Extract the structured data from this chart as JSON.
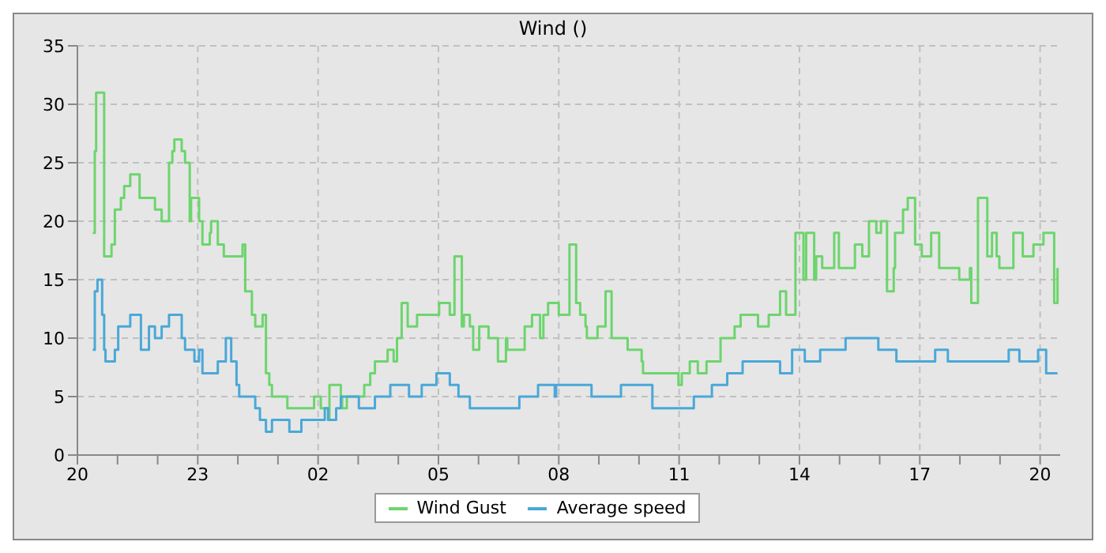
{
  "chart_data": {
    "type": "step",
    "title": "Wind ()",
    "xlim": [
      "--01-01T20:00",
      "--01-02T20:30"
    ],
    "ylim": [
      0,
      35
    ],
    "xticks": [
      {
        "value": "--01-01T20:00",
        "label": "20"
      },
      {
        "value": "--01-01T21:00",
        "label": null
      },
      {
        "value": "--01-01T22:00",
        "label": null
      },
      {
        "value": "--01-01T23:00",
        "label": "23"
      },
      {
        "value": "--01-02T00:00",
        "label": null
      },
      {
        "value": "--01-02T01:00",
        "label": null
      },
      {
        "value": "--01-02T02:00",
        "label": "02"
      },
      {
        "value": "--01-02T03:00",
        "label": null
      },
      {
        "value": "--01-02T04:00",
        "label": null
      },
      {
        "value": "--01-02T05:00",
        "label": "05"
      },
      {
        "value": "--01-02T06:00",
        "label": null
      },
      {
        "value": "--01-02T07:00",
        "label": null
      },
      {
        "value": "--01-02T08:00",
        "label": "08"
      },
      {
        "value": "--01-02T09:00",
        "label": null
      },
      {
        "value": "--01-02T10:00",
        "label": null
      },
      {
        "value": "--01-02T11:00",
        "label": "11"
      },
      {
        "value": "--01-02T12:00",
        "label": null
      },
      {
        "value": "--01-02T13:00",
        "label": null
      },
      {
        "value": "--01-02T14:00",
        "label": "14"
      },
      {
        "value": "--01-02T15:00",
        "label": null
      },
      {
        "value": "--01-02T16:00",
        "label": null
      },
      {
        "value": "--01-02T17:00",
        "label": "17"
      },
      {
        "value": "--01-02T18:00",
        "label": null
      },
      {
        "value": "--01-02T19:00",
        "label": null
      },
      {
        "value": "--01-02T20:00",
        "label": "20"
      }
    ],
    "yticks": [
      0,
      5,
      10,
      15,
      20,
      25,
      30,
      35
    ],
    "grid": true,
    "legend": "bottom",
    "series": [
      {
        "name": "Wind Gust",
        "color": "#6dd56d",
        "x": [
          "--01-01T20:23",
          "--01-01T20:26",
          "--01-01T20:28",
          "--01-01T20:40",
          "--01-01T20:51",
          "--01-01T20:56",
          "--01-01T21:05",
          "--01-01T21:10",
          "--01-01T21:19",
          "--01-01T21:33",
          "--01-01T21:56",
          "--01-01T22:06",
          "--01-01T22:17",
          "--01-01T22:22",
          "--01-01T22:25",
          "--01-01T22:36",
          "--01-01T22:41",
          "--01-01T22:48",
          "--01-01T22:50",
          "--01-01T23:02",
          "--01-01T23:07",
          "--01-01T23:18",
          "--01-01T23:20",
          "--01-01T23:30",
          "--01-01T23:39",
          "--01-02T00:07",
          "--01-02T00:11",
          "--01-02T00:21",
          "--01-02T00:26",
          "--01-02T00:37",
          "--01-02T00:42",
          "--01-02T00:47",
          "--01-02T00:51",
          "--01-02T01:14",
          "--01-02T01:54",
          "--01-02T02:04",
          "--01-02T02:15",
          "--01-02T02:17",
          "--01-02T02:34",
          "--01-02T02:36",
          "--01-02T02:43",
          "--01-02T03:09",
          "--01-02T03:18",
          "--01-02T03:25",
          "--01-02T03:44",
          "--01-02T03:53",
          "--01-02T03:58",
          "--01-02T04:05",
          "--01-02T04:14",
          "--01-02T04:28",
          "--01-02T05:01",
          "--01-02T05:17",
          "--01-02T05:24",
          "--01-02T05:35",
          "--01-02T05:38",
          "--01-02T05:47",
          "--01-02T05:52",
          "--01-02T06:01",
          "--01-02T06:15",
          "--01-02T06:29",
          "--01-02T06:41",
          "--01-02T06:43",
          "--01-02T07:09",
          "--01-02T07:20",
          "--01-02T07:32",
          "--01-02T07:37",
          "--01-02T07:44",
          "--01-02T08:00",
          "--01-02T08:16",
          "--01-02T08:26",
          "--01-02T08:32",
          "--01-02T08:40",
          "--01-02T08:42",
          "--01-02T08:58",
          "--01-02T09:10",
          "--01-02T09:19",
          "--01-02T09:43",
          "--01-02T10:04",
          "--01-02T10:06",
          "--01-02T10:59",
          "--01-02T11:04",
          "--01-02T11:16",
          "--01-02T11:28",
          "--01-02T11:41",
          "--01-02T11:49",
          "--01-02T12:02",
          "--01-02T12:23",
          "--01-02T12:32",
          "--01-02T12:58",
          "--01-02T13:14",
          "--01-02T13:31",
          "--01-02T13:40",
          "--01-02T13:54",
          "--01-02T14:06",
          "--01-02T14:10",
          "--01-02T14:22",
          "--01-02T14:25",
          "--01-02T14:34",
          "--01-02T14:52",
          "--01-02T14:59",
          "--01-02T15:23",
          "--01-02T15:34",
          "--01-02T15:44",
          "--01-02T15:55",
          "--01-02T16:02",
          "--01-02T16:11",
          "--01-02T16:21",
          "--01-02T16:23",
          "--01-02T16:35",
          "--01-02T16:42",
          "--01-02T16:53",
          "--01-02T17:03",
          "--01-02T17:17",
          "--01-02T17:29",
          "--01-02T17:59",
          "--01-02T18:15",
          "--01-02T18:17",
          "--01-02T18:27",
          "--01-02T18:41",
          "--01-02T18:48",
          "--01-02T18:55",
          "--01-02T18:59",
          "--01-02T19:20",
          "--01-02T19:34",
          "--01-02T19:50",
          "--01-02T20:05",
          "--01-02T20:21",
          "--01-02T20:26"
        ],
        "values": [
          19,
          26,
          31,
          17,
          18,
          21,
          22,
          23,
          24,
          22,
          21,
          20,
          25,
          26,
          27,
          26,
          25,
          20,
          22,
          20,
          18,
          19,
          20,
          18,
          17,
          18,
          14,
          12,
          11,
          12,
          7,
          6,
          5,
          4,
          5,
          4,
          3,
          6,
          5,
          4,
          5,
          6,
          7,
          8,
          9,
          8,
          10,
          13,
          11,
          12,
          13,
          12,
          17,
          11,
          12,
          11,
          9,
          11,
          10,
          8,
          10,
          9,
          11,
          12,
          10,
          12,
          13,
          12,
          18,
          13,
          12,
          11,
          10,
          11,
          14,
          10,
          9,
          8,
          7,
          6,
          7,
          8,
          7,
          8,
          8,
          10,
          11,
          12,
          11,
          12,
          14,
          12,
          19,
          15,
          19,
          15,
          17,
          16,
          19,
          16,
          18,
          17,
          20,
          19,
          20,
          14,
          16,
          19,
          21,
          22,
          18,
          17,
          19,
          16,
          15,
          16,
          13,
          22,
          17,
          19,
          17,
          16,
          19,
          17,
          18,
          19,
          13,
          16
        ]
      },
      {
        "name": "Average speed",
        "color": "#4aa8d8",
        "x": [
          "--01-01T20:23",
          "--01-01T20:26",
          "--01-01T20:30",
          "--01-01T20:37",
          "--01-01T20:40",
          "--01-01T20:42",
          "--01-01T20:56",
          "--01-01T21:01",
          "--01-01T21:19",
          "--01-01T21:35",
          "--01-01T21:47",
          "--01-01T21:56",
          "--01-01T22:06",
          "--01-01T22:17",
          "--01-01T22:36",
          "--01-01T22:41",
          "--01-01T22:55",
          "--01-01T23:02",
          "--01-01T23:07",
          "--01-01T23:30",
          "--01-01T23:42",
          "--01-01T23:50",
          "--01-01T23:58",
          "--01-02T00:02",
          "--01-02T00:26",
          "--01-02T00:33",
          "--01-02T00:42",
          "--01-02T00:51",
          "--01-02T01:17",
          "--01-02T01:35",
          "--01-02T02:10",
          "--01-02T02:15",
          "--01-02T02:27",
          "--01-02T02:34",
          "--01-02T03:01",
          "--01-02T03:25",
          "--01-02T03:48",
          "--01-02T04:16",
          "--01-02T04:35",
          "--01-02T04:57",
          "--01-02T05:17",
          "--01-02T05:30",
          "--01-02T05:47",
          "--01-02T06:21",
          "--01-02T07:01",
          "--01-02T07:29",
          "--01-02T07:54",
          "--01-02T07:56",
          "--01-02T08:49",
          "--01-02T09:33",
          "--01-02T10:20",
          "--01-02T11:22",
          "--01-02T11:49",
          "--01-02T12:12",
          "--01-02T12:35",
          "--01-02T13:31",
          "--01-02T13:49",
          "--01-02T14:08",
          "--01-02T14:31",
          "--01-02T15:09",
          "--01-02T15:58",
          "--01-02T16:25",
          "--01-02T17:23",
          "--01-02T17:42",
          "--01-02T18:09",
          "--01-02T19:13",
          "--01-02T19:29",
          "--01-02T19:57",
          "--01-02T20:09",
          "--01-02T20:26"
        ],
        "values": [
          9,
          14,
          15,
          12,
          9,
          8,
          9,
          11,
          12,
          9,
          11,
          10,
          11,
          12,
          10,
          9,
          8,
          9,
          7,
          8,
          10,
          8,
          6,
          5,
          4,
          3,
          2,
          3,
          2,
          3,
          4,
          3,
          4,
          5,
          4,
          5,
          6,
          5,
          6,
          7,
          6,
          5,
          4,
          4,
          5,
          6,
          5,
          6,
          5,
          6,
          4,
          5,
          6,
          7,
          8,
          7,
          9,
          8,
          9,
          10,
          9,
          8,
          9,
          8,
          8,
          9,
          8,
          9,
          7,
          7
        ]
      }
    ]
  }
}
